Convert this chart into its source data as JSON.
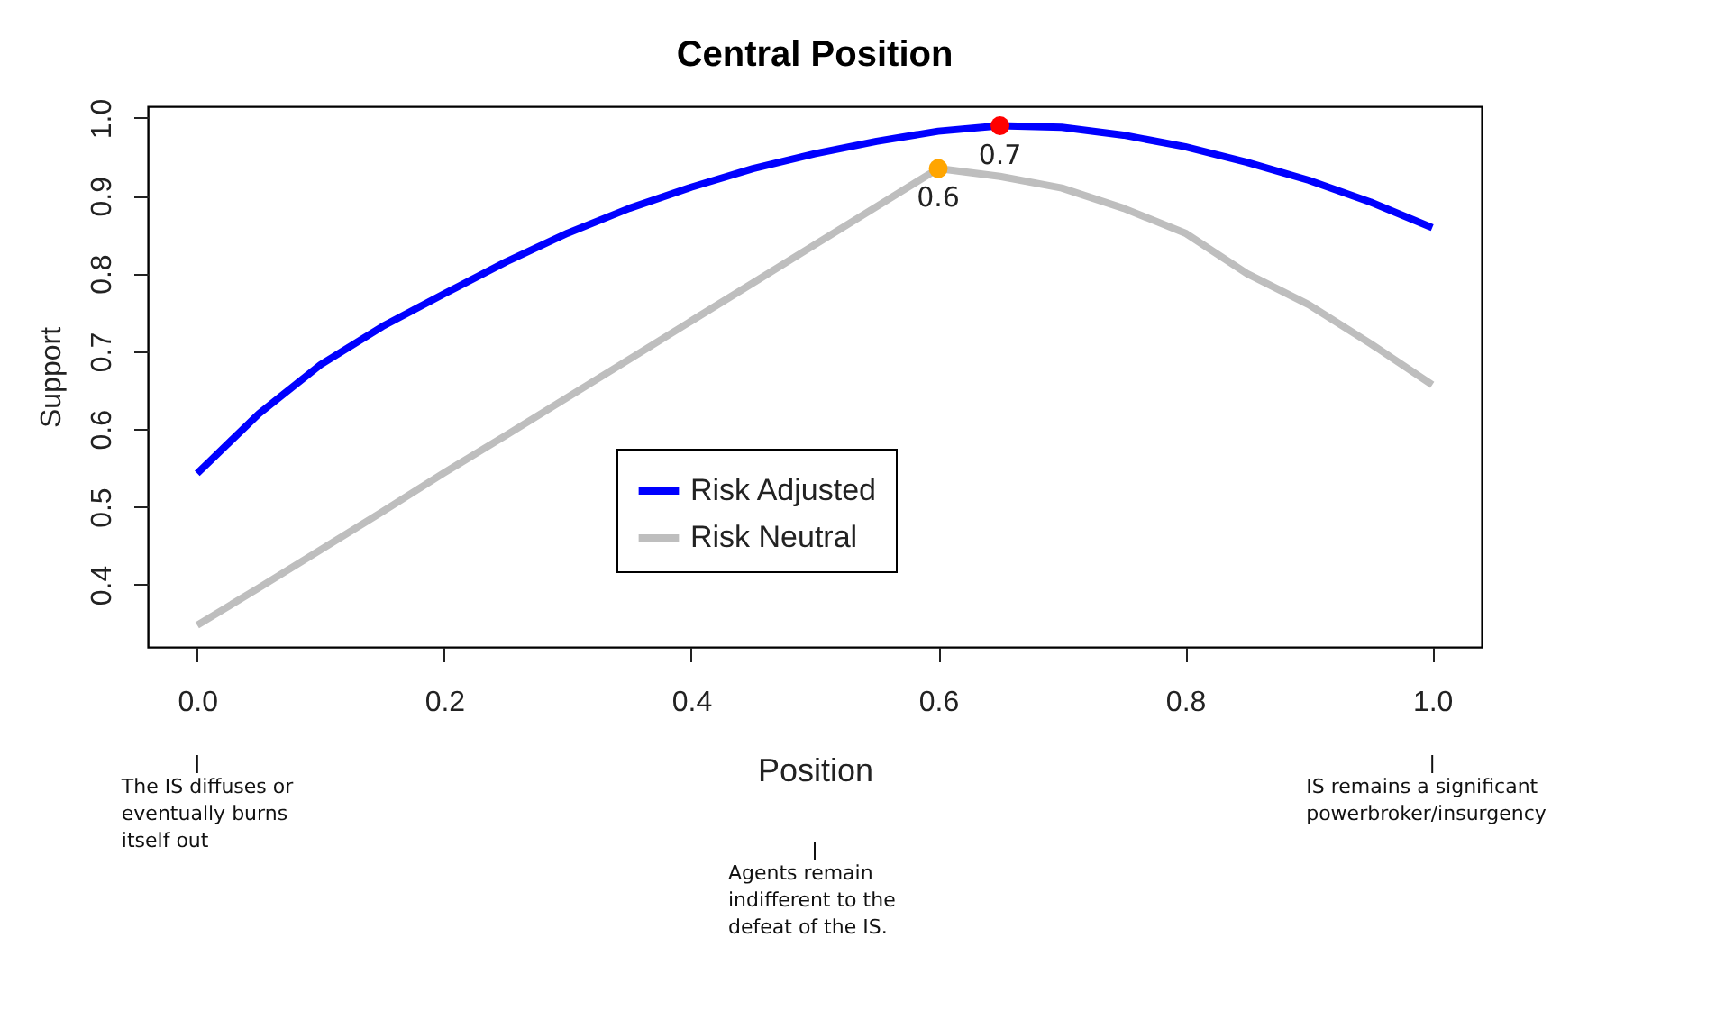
{
  "chart_data": {
    "type": "line",
    "title": "Central Position",
    "xlabel": "Position",
    "ylabel": "Support",
    "x": [
      0,
      0.05,
      0.1,
      0.15,
      0.2,
      0.25,
      0.3,
      0.35,
      0.4,
      0.45,
      0.5,
      0.55,
      0.6,
      0.65,
      0.7,
      0.75,
      0.8,
      0.85,
      0.9,
      0.95,
      1
    ],
    "series": [
      {
        "name": "Risk Adjusted",
        "color": "#0000ff",
        "values": [
          0.543,
          0.62,
          0.683,
          0.732,
          0.774,
          0.815,
          0.852,
          0.884,
          0.911,
          0.935,
          0.954,
          0.97,
          0.983,
          0.99,
          0.988,
          0.978,
          0.963,
          0.943,
          0.92,
          0.892,
          0.859
        ]
      },
      {
        "name": "Risk Neutral",
        "color": "#bebebe",
        "values": [
          0.348,
          0.396,
          0.445,
          0.494,
          0.544,
          0.592,
          0.641,
          0.69,
          0.739,
          0.788,
          0.837,
          0.886,
          0.935,
          0.925,
          0.91,
          0.884,
          0.852,
          0.8,
          0.76,
          0.71,
          0.657
        ]
      },
      {
        "type": "scatter",
        "color": "#ff0000",
        "x": [
          0.65
        ],
        "values": [
          0.99
        ],
        "marker": "circle"
      },
      {
        "type": "scatter",
        "color": "#ffa500",
        "x": [
          0.6
        ],
        "values": [
          0.935
        ],
        "marker": "circle"
      }
    ],
    "xlim": [
      -0.04,
      1.04
    ],
    "ylim": [
      0.32,
      1.015
    ],
    "xticks": [
      {
        "value": 0,
        "label": "0.0"
      },
      0.2,
      0.4,
      0.6,
      0.8,
      {
        "value": 1,
        "label": "1.0"
      }
    ],
    "yticks": [
      0.4,
      0.5,
      0.6,
      0.7,
      0.8,
      0.9,
      {
        "value": 1,
        "label": "1.0"
      }
    ],
    "grid": false,
    "legend": "bottom",
    "marker": "none",
    "line_style": "solid",
    "annotations": [
      {
        "text": "0.7",
        "x": 0.65,
        "y": 0.99
      },
      {
        "text": "0.6",
        "x": 0.6,
        "y": 0.935
      },
      {
        "text": "The IS diffuses or eventually burns itself out",
        "x": 0
      },
      {
        "text": "Agents remain indifferent to the defeat of the IS.",
        "x": 0.5
      },
      {
        "text": "IS remains a significant powerbroker/insurgency",
        "x": 1
      }
    ]
  }
}
